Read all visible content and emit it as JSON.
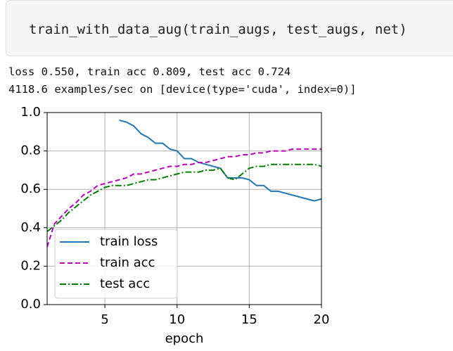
{
  "code": "train_with_data_aug(train_augs, test_augs, net)",
  "output": [
    "loss 0.550, train acc 0.809, test acc 0.724",
    "4118.6 examples/sec on [device(type='cuda', index=0)]"
  ],
  "chart_data": {
    "type": "line",
    "xlabel": "epoch",
    "x": [
      1,
      1.5,
      2,
      2.5,
      3,
      3.5,
      4,
      4.5,
      5,
      5.5,
      6,
      6.5,
      7,
      7.5,
      8,
      8.5,
      9,
      9.5,
      10,
      10.5,
      11,
      11.5,
      12,
      12.5,
      13,
      13.5,
      14,
      14.5,
      15,
      15.5,
      16,
      16.5,
      17,
      17.5,
      18,
      18.5,
      19,
      19.5,
      20
    ],
    "series": [
      {
        "name": "train loss",
        "color": "#1f77b4",
        "linestyle": "solid",
        "values": [
          null,
          null,
          null,
          null,
          null,
          null,
          null,
          null,
          null,
          null,
          0.96,
          0.95,
          0.93,
          0.89,
          0.87,
          0.84,
          0.84,
          0.81,
          0.8,
          0.76,
          0.76,
          0.74,
          0.73,
          0.72,
          0.71,
          0.66,
          0.66,
          0.66,
          0.65,
          0.62,
          0.62,
          0.59,
          0.59,
          0.58,
          0.57,
          0.56,
          0.55,
          0.54,
          0.55
        ]
      },
      {
        "name": "train acc",
        "color": "#bf00bf",
        "linestyle": "dashed",
        "values": [
          0.3,
          0.42,
          0.46,
          0.5,
          0.53,
          0.57,
          0.59,
          0.62,
          0.63,
          0.64,
          0.65,
          0.66,
          0.68,
          0.68,
          0.69,
          0.7,
          0.71,
          0.72,
          0.72,
          0.73,
          0.73,
          0.74,
          0.74,
          0.75,
          0.76,
          0.77,
          0.77,
          0.78,
          0.78,
          0.79,
          0.79,
          0.8,
          0.8,
          0.8,
          0.81,
          0.81,
          0.81,
          0.81,
          0.81
        ]
      },
      {
        "name": "test acc",
        "color": "#008000",
        "linestyle": "dashdot",
        "values": [
          0.38,
          0.41,
          0.44,
          0.48,
          0.51,
          0.54,
          0.57,
          0.59,
          0.61,
          0.62,
          0.62,
          0.62,
          0.63,
          0.64,
          0.65,
          0.65,
          0.66,
          0.67,
          0.68,
          0.69,
          0.69,
          0.69,
          0.7,
          0.7,
          0.71,
          0.66,
          0.65,
          0.68,
          0.71,
          0.72,
          0.72,
          0.73,
          0.73,
          0.73,
          0.73,
          0.73,
          0.73,
          0.73,
          0.72
        ]
      }
    ],
    "xlim": [
      1,
      20
    ],
    "xticks": [
      5,
      10,
      15,
      20
    ],
    "ylim": [
      0,
      1
    ],
    "yticks": [
      {
        "value": 0,
        "label": "0.0"
      },
      0.2,
      0.4,
      0.6,
      0.8,
      {
        "value": 1,
        "label": "1.0"
      }
    ],
    "grid": true,
    "legend": "lower left"
  }
}
